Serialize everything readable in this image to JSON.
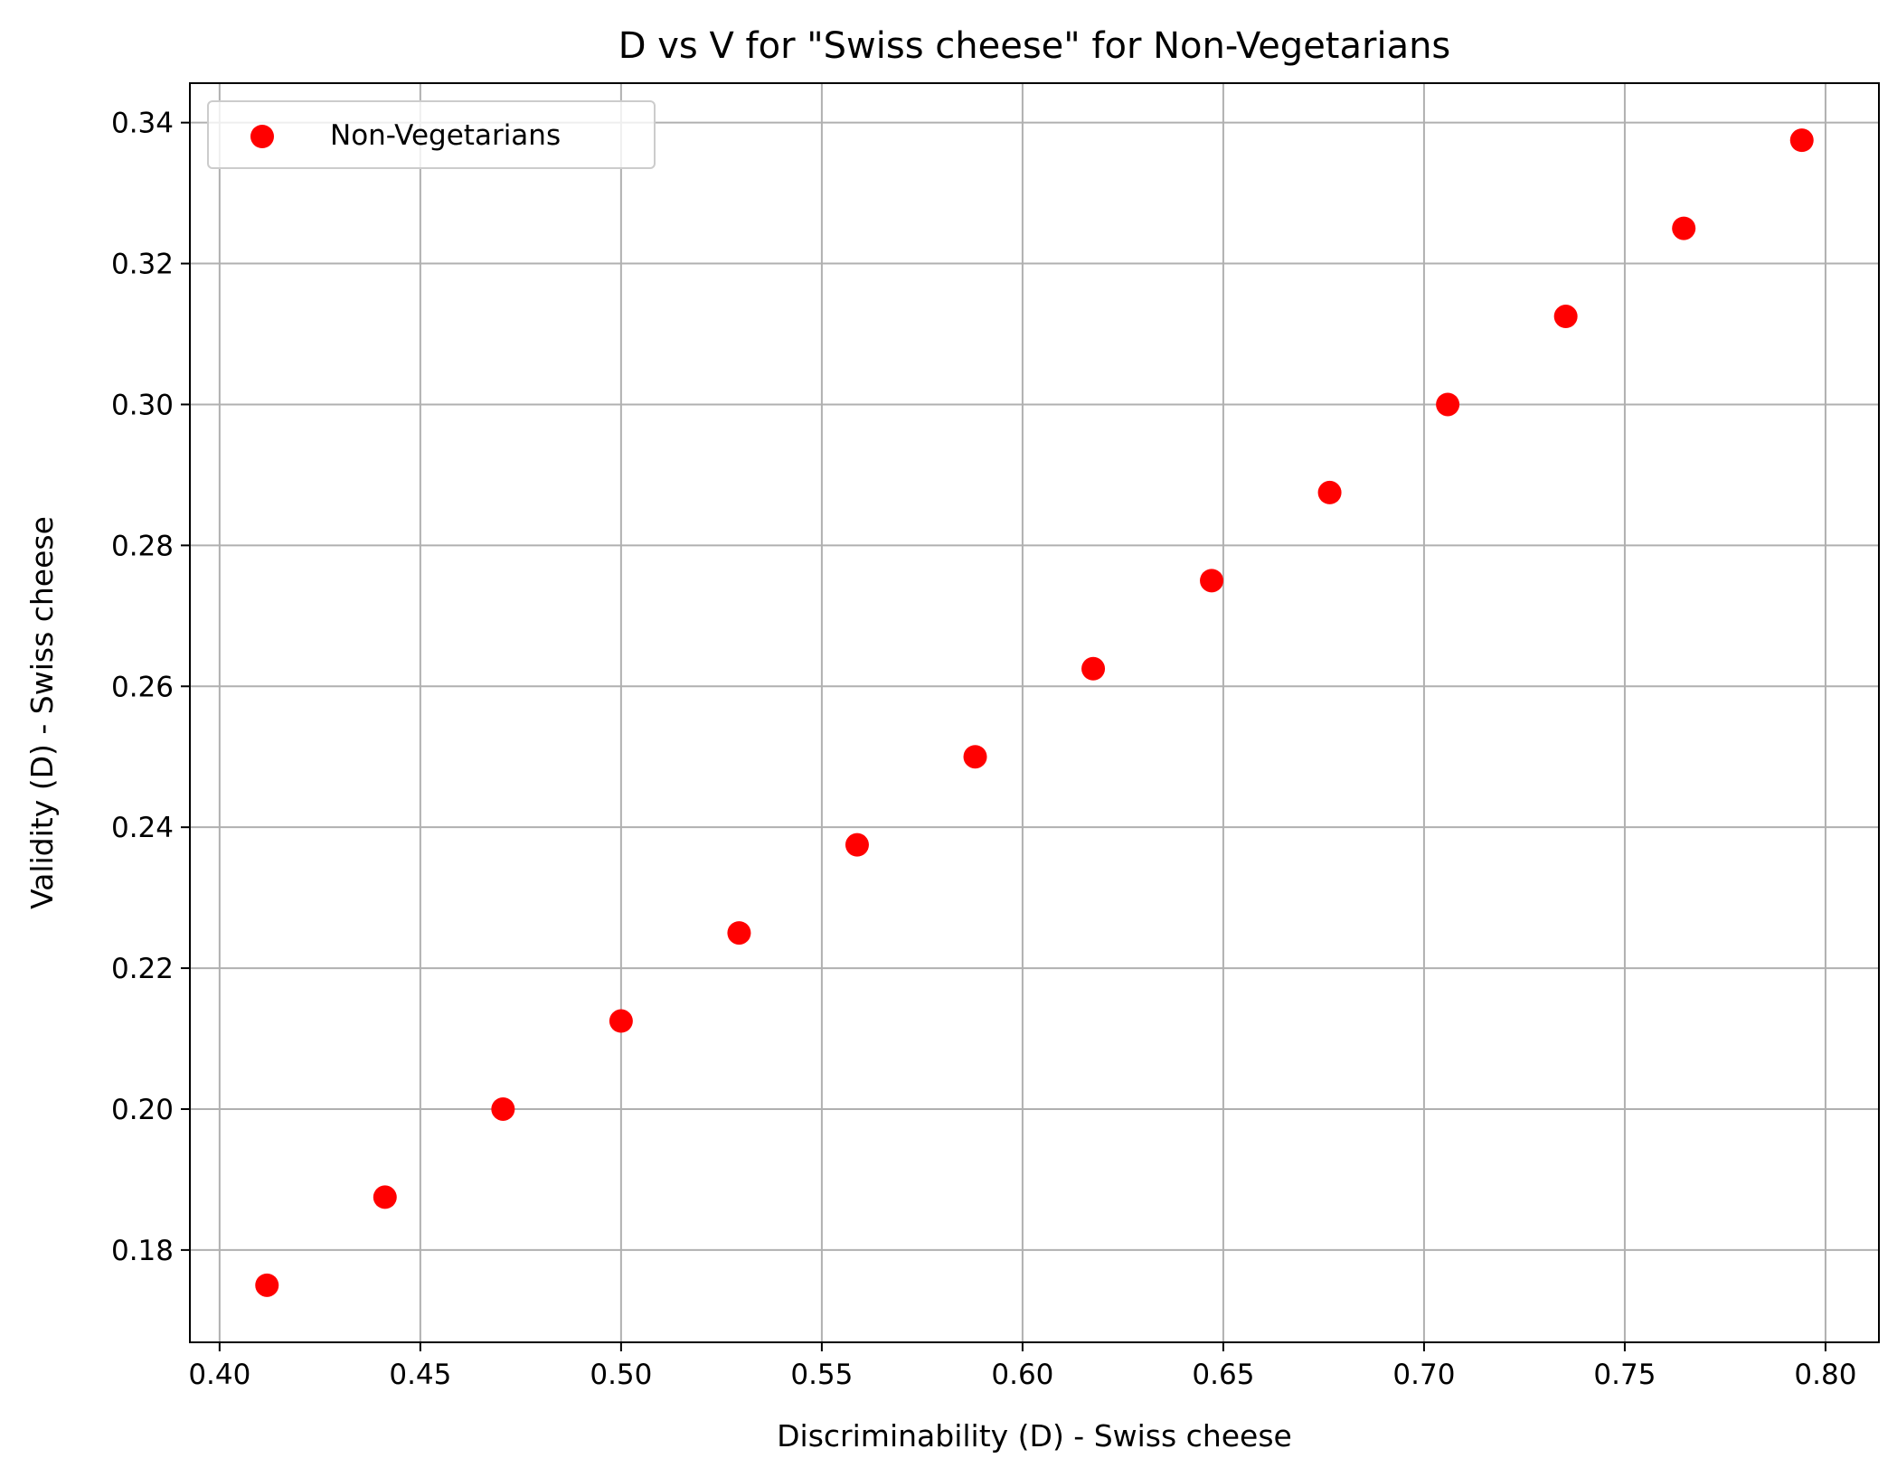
{
  "chart_data": {
    "type": "scatter",
    "title": "D vs V for \"Swiss cheese\" for Non-Vegetarians",
    "xlabel": "Discriminability (D) - Swiss cheese",
    "ylabel": "Validity (D) - Swiss cheese",
    "xlim": [
      0.3926,
      0.8133
    ],
    "ylim": [
      0.1669,
      0.3456
    ],
    "xticks": [
      0.4,
      0.45,
      0.5,
      0.55,
      0.6,
      0.65,
      0.7,
      0.75,
      0.8
    ],
    "xtick_labels": [
      "0.40",
      "0.45",
      "0.50",
      "0.55",
      "0.60",
      "0.65",
      "0.70",
      "0.75",
      "0.80"
    ],
    "yticks": [
      0.18,
      0.2,
      0.22,
      0.24,
      0.26,
      0.28,
      0.3,
      0.32,
      0.34
    ],
    "ytick_labels": [
      "0.18",
      "0.20",
      "0.22",
      "0.24",
      "0.26",
      "0.28",
      "0.30",
      "0.32",
      "0.34"
    ],
    "grid": true,
    "legend_position": "top-left",
    "series": [
      {
        "name": "Non-Vegetarians",
        "color": "#ff0000",
        "x": [
          0.4118,
          0.4412,
          0.4706,
          0.5,
          0.5294,
          0.5588,
          0.5882,
          0.6176,
          0.6471,
          0.6765,
          0.7059,
          0.7353,
          0.7647,
          0.7941
        ],
        "y": [
          0.175,
          0.1875,
          0.2,
          0.2125,
          0.225,
          0.2375,
          0.25,
          0.2625,
          0.275,
          0.2875,
          0.3,
          0.3125,
          0.325,
          0.3375
        ]
      }
    ]
  }
}
